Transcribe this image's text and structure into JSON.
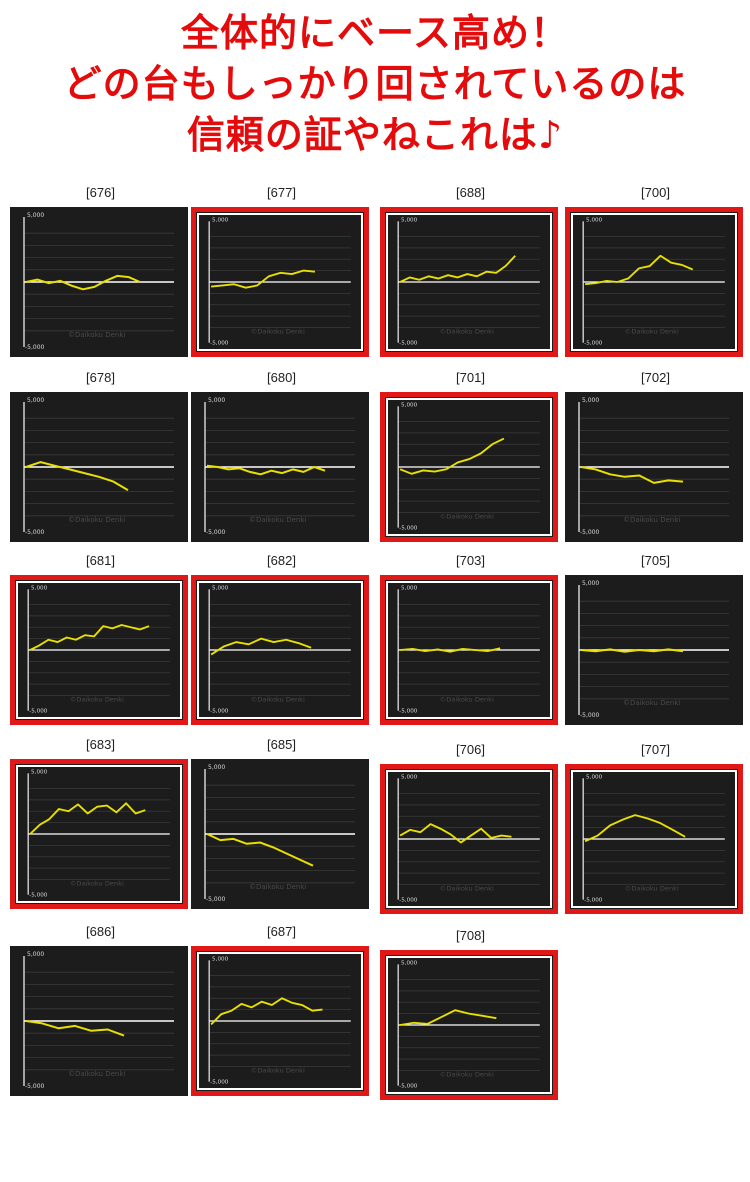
{
  "headline": {
    "line1": "全体的にベース高め！",
    "line2": "どの台もしっかり回されているのは",
    "line3": "信頼の証やねこれは♪"
  },
  "colors": {
    "headline": "#e30b0b",
    "highlight_frame": "#e01818",
    "panel_bg": "#1c1c1c",
    "series": "#e8e000",
    "zero_line": "#ffffff"
  },
  "panel_text": {
    "ymax_label": "5,000",
    "ymin_label": "-5,000",
    "watermark": "©Daikoku Denki"
  },
  "chart_data": [
    {
      "type": "line",
      "title": "[676]",
      "highlighted": false,
      "ylim": [
        -5000,
        5000
      ],
      "yticks": [
        5000,
        -5000
      ],
      "values": [
        0,
        200,
        -100,
        100,
        -300,
        -600,
        -400,
        100,
        500,
        400,
        0
      ]
    },
    {
      "type": "line",
      "title": "[677]",
      "highlighted": true,
      "ylim": [
        -5000,
        5000
      ],
      "yticks": [
        5000,
        -5000
      ],
      "values": [
        -400,
        -300,
        -200,
        -500,
        -300,
        500,
        800,
        700,
        1000,
        900
      ]
    },
    {
      "type": "line",
      "title": "[678]",
      "highlighted": false,
      "ylim": [
        -5000,
        5000
      ],
      "yticks": [
        5000,
        -5000
      ],
      "values": [
        0,
        400,
        100,
        -200,
        -500,
        -800,
        -1200,
        -1900
      ]
    },
    {
      "type": "line",
      "title": "[680]",
      "highlighted": false,
      "ylim": [
        -5000,
        5000
      ],
      "yticks": [
        5000,
        -5000
      ],
      "values": [
        100,
        0,
        -200,
        -100,
        -400,
        -600,
        -300,
        -500,
        -200,
        -400,
        0,
        -300
      ]
    },
    {
      "type": "line",
      "title": "[681]",
      "highlighted": true,
      "ylim": [
        -5000,
        5000
      ],
      "yticks": [
        5000,
        -5000
      ],
      "values": [
        0,
        400,
        900,
        700,
        1100,
        900,
        1300,
        1200,
        2100,
        1900,
        2200,
        2000,
        1800,
        2100
      ]
    },
    {
      "type": "line",
      "title": "[682]",
      "highlighted": true,
      "ylim": [
        -5000,
        5000
      ],
      "yticks": [
        5000,
        -5000
      ],
      "values": [
        -400,
        300,
        700,
        500,
        1000,
        700,
        900,
        600,
        200
      ]
    },
    {
      "type": "line",
      "title": "[683]",
      "highlighted": true,
      "ylim": [
        -5000,
        5000
      ],
      "yticks": [
        5000,
        -5000
      ],
      "values": [
        0,
        800,
        1300,
        2200,
        2000,
        2600,
        1800,
        2400,
        2500,
        1900,
        2700,
        1800,
        2100
      ]
    },
    {
      "type": "line",
      "title": "[685]",
      "highlighted": false,
      "ylim": [
        -5000,
        5000
      ],
      "yticks": [
        5000,
        -5000
      ],
      "values": [
        0,
        -500,
        -400,
        -800,
        -700,
        -1100,
        -1600,
        -2100,
        -2600
      ]
    },
    {
      "type": "line",
      "title": "[686]",
      "highlighted": false,
      "ylim": [
        -5000,
        5000
      ],
      "yticks": [
        5000,
        -5000
      ],
      "values": [
        0,
        -200,
        -600,
        -400,
        -800,
        -700,
        -1200
      ]
    },
    {
      "type": "line",
      "title": "[687]",
      "highlighted": true,
      "ylim": [
        -5000,
        5000
      ],
      "yticks": [
        5000,
        -5000
      ],
      "values": [
        -300,
        600,
        900,
        1500,
        1200,
        1700,
        1400,
        2000,
        1600,
        1400,
        900,
        1000
      ]
    },
    {
      "type": "line",
      "title": "[688]",
      "highlighted": true,
      "ylim": [
        -5000,
        5000
      ],
      "yticks": [
        5000,
        -5000
      ],
      "values": [
        0,
        400,
        200,
        500,
        300,
        600,
        400,
        700,
        500,
        900,
        800,
        1400,
        2300
      ]
    },
    {
      "type": "line",
      "title": "[700]",
      "highlighted": true,
      "ylim": [
        -5000,
        5000
      ],
      "yticks": [
        5000,
        -5000
      ],
      "values": [
        -200,
        -100,
        100,
        0,
        300,
        1200,
        1400,
        2300,
        1700,
        1500,
        1100
      ]
    },
    {
      "type": "line",
      "title": "[701]",
      "highlighted": true,
      "ylim": [
        -5000,
        5000
      ],
      "yticks": [
        5000,
        -5000
      ],
      "values": [
        -200,
        -600,
        -300,
        -400,
        -200,
        400,
        700,
        1200,
        2000,
        2500
      ]
    },
    {
      "type": "line",
      "title": "[702]",
      "highlighted": false,
      "ylim": [
        -5000,
        5000
      ],
      "yticks": [
        5000,
        -5000
      ],
      "values": [
        0,
        -200,
        -600,
        -800,
        -700,
        -1300,
        -1100,
        -1200
      ]
    },
    {
      "type": "line",
      "title": "[703]",
      "highlighted": true,
      "ylim": [
        -5000,
        5000
      ],
      "yticks": [
        5000,
        -5000
      ],
      "values": [
        0,
        100,
        -100,
        50,
        -150,
        100,
        0,
        -100,
        150
      ]
    },
    {
      "type": "line",
      "title": "[705]",
      "highlighted": false,
      "ylim": [
        -5000,
        5000
      ],
      "yticks": [
        5000,
        -5000
      ],
      "values": [
        0,
        -100,
        50,
        -150,
        0,
        -100,
        50,
        -100
      ]
    },
    {
      "type": "line",
      "title": "[706]",
      "highlighted": true,
      "ylim": [
        -5000,
        5000
      ],
      "yticks": [
        5000,
        -5000
      ],
      "values": [
        300,
        800,
        600,
        1300,
        900,
        400,
        -300,
        300,
        900,
        100,
        300,
        200
      ]
    },
    {
      "type": "line",
      "title": "[707]",
      "highlighted": true,
      "ylim": [
        -5000,
        5000
      ],
      "yticks": [
        5000,
        -5000
      ],
      "values": [
        -200,
        300,
        1200,
        1700,
        2100,
        1800,
        1400,
        800,
        200
      ]
    },
    {
      "type": "line",
      "title": "[708]",
      "highlighted": true,
      "ylim": [
        -5000,
        5000
      ],
      "yticks": [
        5000,
        -5000
      ],
      "values": [
        0,
        200,
        100,
        700,
        1300,
        1000,
        800,
        600
      ]
    }
  ]
}
